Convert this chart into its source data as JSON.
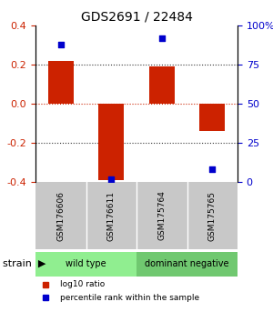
{
  "title": "GDS2691 / 22484",
  "samples": [
    "GSM176606",
    "GSM176611",
    "GSM175764",
    "GSM175765"
  ],
  "log10_ratio": [
    0.22,
    -0.39,
    0.19,
    -0.14
  ],
  "percentile_rank": [
    88,
    2,
    92,
    8
  ],
  "groups": [
    {
      "label": "wild type",
      "color": "#90EE90",
      "samples": [
        0,
        1
      ]
    },
    {
      "label": "dominant negative",
      "color": "#70C870",
      "samples": [
        2,
        3
      ]
    }
  ],
  "group_label": "strain",
  "bar_color": "#CC2200",
  "dot_color": "#0000CC",
  "ylim_left": [
    -0.4,
    0.4
  ],
  "ylim_right": [
    0,
    100
  ],
  "yticks_left": [
    -0.4,
    -0.2,
    0.0,
    0.2,
    0.4
  ],
  "yticks_right": [
    0,
    25,
    50,
    75,
    100
  ],
  "ytick_labels_right": [
    "0",
    "25",
    "50",
    "75",
    "100%"
  ],
  "hlines": [
    -0.2,
    0.0,
    0.2
  ],
  "hline_zero_color": "#CC2200",
  "hline_other_color": "#333333",
  "legend_items": [
    "log10 ratio",
    "percentile rank within the sample"
  ],
  "legend_colors": [
    "#CC2200",
    "#0000CC"
  ],
  "background_color": "#FFFFFF",
  "plot_bg_color": "#FFFFFF",
  "sample_box_color": "#C8C8C8",
  "bar_width": 0.5
}
